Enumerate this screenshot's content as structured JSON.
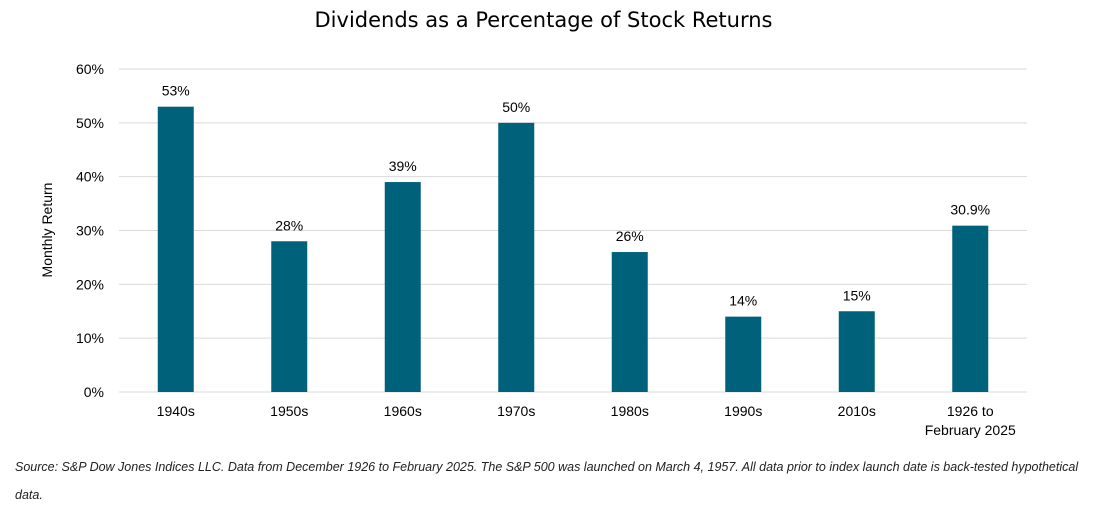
{
  "chart_data": {
    "type": "bar",
    "title": "Dividends as a Percentage of Stock Returns",
    "ylabel": "Monthly Return",
    "xlabel": "",
    "categories": [
      "1940s",
      "1950s",
      "1960s",
      "1970s",
      "1980s",
      "1990s",
      "2010s",
      "1926 to February 2025"
    ],
    "category_lines": [
      [
        "1940s"
      ],
      [
        "1950s"
      ],
      [
        "1960s"
      ],
      [
        "1970s"
      ],
      [
        "1980s"
      ],
      [
        "1990s"
      ],
      [
        "2010s"
      ],
      [
        "1926 to",
        "February 2025"
      ]
    ],
    "values": [
      53,
      28,
      39,
      50,
      26,
      14,
      15,
      30.9
    ],
    "data_labels": [
      "53%",
      "28%",
      "39%",
      "50%",
      "26%",
      "14%",
      "15%",
      "30.9%"
    ],
    "ylim": [
      0,
      60
    ],
    "yticks": [
      0,
      10,
      20,
      30,
      40,
      50,
      60
    ],
    "ytick_labels": [
      "0%",
      "10%",
      "20%",
      "30%",
      "40%",
      "50%",
      "60%"
    ],
    "grid": true,
    "bar_color": "#00627a",
    "grid_color": "#d9d9d9"
  },
  "source_note": "Source: S&P Dow Jones Indices LLC.  Data from December 1926 to February 2025.  The S&P 500 was launched on March 4, 1957.  All data prior to index launch date is back-tested hypothetical data."
}
